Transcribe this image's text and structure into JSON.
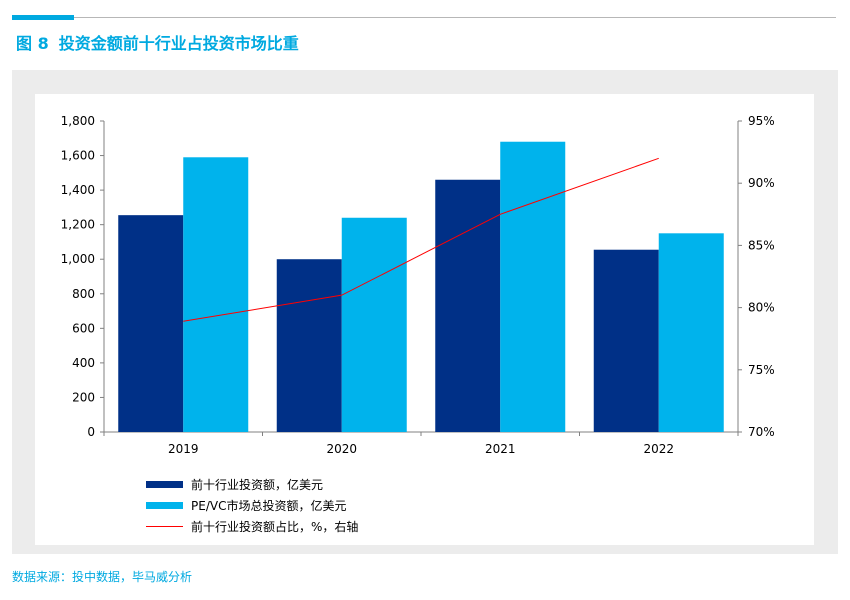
{
  "figure": {
    "number": "图 8",
    "title": "投资金额前十行业占投资市场比重",
    "source": "数据来源：投中数据，毕马威分析"
  },
  "colors": {
    "accent": "#00a9e0",
    "top10_bar": "#003087",
    "total_bar": "#00b3ec",
    "share_line": "#ff0000",
    "panel_bg": "#ececec"
  },
  "chart_data": {
    "type": "bar",
    "categories": [
      "2019",
      "2020",
      "2021",
      "2022"
    ],
    "series": [
      {
        "name": "前十行业投资额，亿美元",
        "type": "bar",
        "axis": "left",
        "values": [
          1255,
          1000,
          1460,
          1055
        ]
      },
      {
        "name": "PE/VC市场总投资额，亿美元",
        "type": "bar",
        "axis": "left",
        "values": [
          1590,
          1240,
          1680,
          1150
        ]
      },
      {
        "name": "前十行业投资额占比，%，右轴",
        "type": "line",
        "axis": "right",
        "values": [
          78.9,
          81.0,
          87.5,
          92.0
        ]
      }
    ],
    "y_left": {
      "min": 0,
      "max": 1800,
      "ticks": [
        "0",
        "200",
        "400",
        "600",
        "800",
        "1,000",
        "1,200",
        "1,400",
        "1,600",
        "1,800"
      ]
    },
    "y_right": {
      "min": 70,
      "max": 95,
      "ticks": [
        "70%",
        "75%",
        "80%",
        "85%",
        "90%",
        "95%"
      ]
    },
    "legend_position": "bottom-left",
    "grid": false
  }
}
